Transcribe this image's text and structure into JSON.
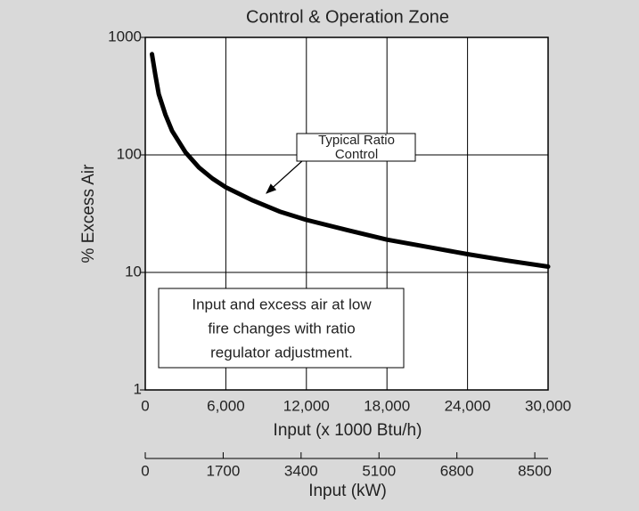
{
  "chart_data": {
    "type": "line",
    "title": "Control & Operation Zone",
    "xlabel": "Input (x 1000 Btu/h)",
    "ylabel": "% Excess Air",
    "x": [
      500,
      750,
      1000,
      1500,
      2000,
      3000,
      4000,
      5000,
      6000,
      8000,
      10000,
      12000,
      15000,
      18000,
      21000,
      24000,
      27000,
      30000
    ],
    "values": [
      720,
      480,
      330,
      220,
      160,
      105,
      78,
      63,
      53,
      41,
      33,
      28,
      23,
      19,
      16.5,
      14.3,
      12.6,
      11.2
    ],
    "color": "#000000",
    "xlim": [
      0,
      30000
    ],
    "xticks": [
      0,
      {
        "value": 6000,
        "label": "6,000"
      },
      {
        "value": 12000,
        "label": "12,000"
      },
      {
        "value": 18000,
        "label": "18,000"
      },
      {
        "value": 24000,
        "label": "24,000"
      },
      {
        "value": 30000,
        "label": "30,000"
      }
    ],
    "ylim": [
      1,
      1000
    ],
    "yticks": [
      1,
      10,
      100,
      1000
    ],
    "ylog": true,
    "grid": true,
    "x2label": "Input (kW)",
    "x2lim": [
      0,
      8790
    ],
    "x2ticks": [
      0,
      1700,
      3400,
      5100,
      6800,
      8500
    ],
    "annotations": [
      {
        "lines": [
          "Typical Ratio",
          "Control"
        ]
      },
      {
        "lines": [
          "Input and excess air at low",
          "fire changes with ratio",
          "regulator adjustment."
        ]
      }
    ]
  }
}
